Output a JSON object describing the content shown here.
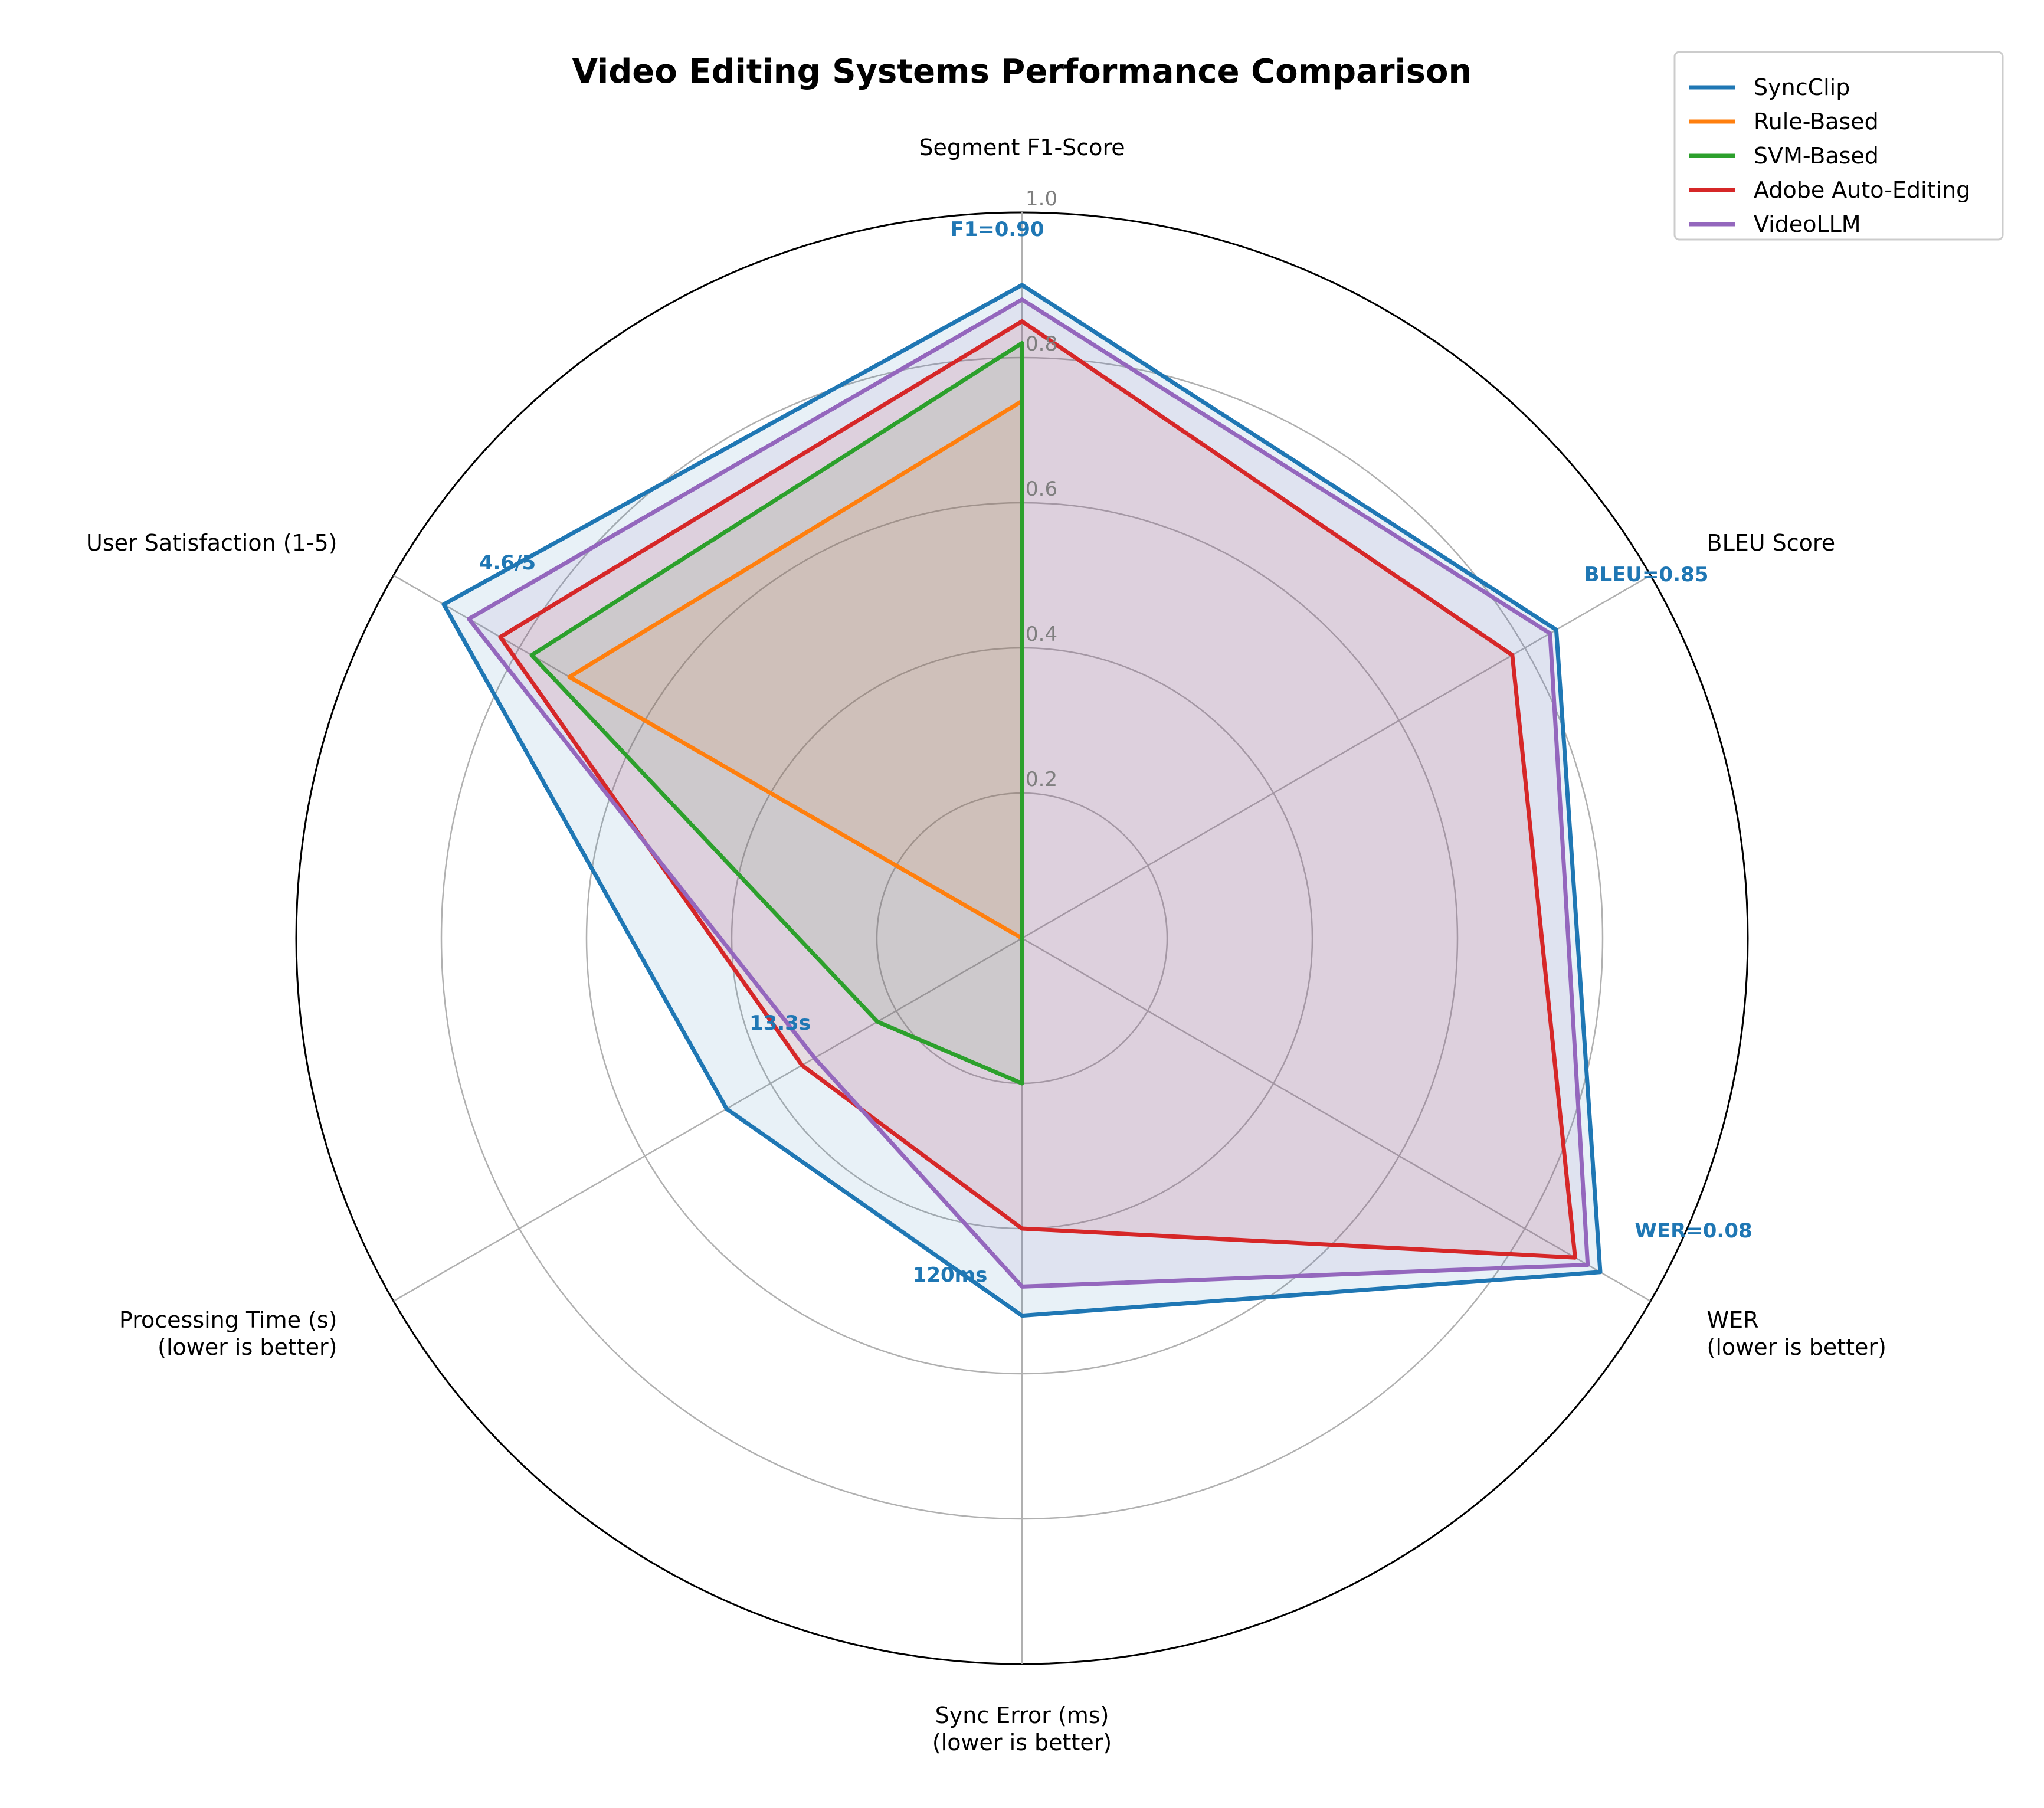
{
  "chart_data": {
    "type": "radar",
    "title": "Video Editing Systems Performance Comparison",
    "axes": [
      {
        "name": "seg_f1",
        "label": [
          "Segment F1-Score"
        ]
      },
      {
        "name": "bleu",
        "label": [
          "BLEU Score"
        ]
      },
      {
        "name": "wer",
        "label": [
          "WER",
          "(lower is better)"
        ]
      },
      {
        "name": "sync_error",
        "label": [
          "Sync Error (ms)",
          "(lower is better)"
        ]
      },
      {
        "name": "processing_time",
        "label": [
          "Processing Time (s)",
          "(lower is better)"
        ]
      },
      {
        "name": "user_satisfaction",
        "label": [
          "User Satisfaction (1-5)"
        ]
      }
    ],
    "rlim": [
      0,
      1.0
    ],
    "rticks": [
      0.2,
      0.4,
      0.6,
      0.8,
      1.0
    ],
    "rtick_labels": [
      "0.2",
      "0.4",
      "0.6",
      "0.8",
      "1.0"
    ],
    "grid": true,
    "legend_position": "top-right",
    "series": [
      {
        "name": "SyncClip",
        "color": "#1f77b4",
        "fill_opacity": 0.1,
        "values": [
          0.9,
          0.85,
          0.92,
          0.52,
          0.47,
          0.92
        ]
      },
      {
        "name": "Rule-Based",
        "color": "#ff7f0e",
        "fill_opacity": 0.1,
        "values": [
          0.74,
          0.0,
          0.0,
          0.0,
          0.0,
          0.72
        ]
      },
      {
        "name": "SVM-Based",
        "color": "#2ca02c",
        "fill_opacity": 0.1,
        "values": [
          0.82,
          0.0,
          0.0,
          0.2,
          0.23,
          0.78
        ]
      },
      {
        "name": "Adobe Auto-Editing",
        "color": "#d62728",
        "fill_opacity": 0.1,
        "values": [
          0.85,
          0.78,
          0.88,
          0.4,
          0.35,
          0.83
        ]
      },
      {
        "name": "VideoLLM",
        "color": "#9467bd",
        "fill_opacity": 0.1,
        "values": [
          0.88,
          0.84,
          0.9,
          0.48,
          0.33,
          0.88
        ]
      }
    ],
    "annotations": [
      {
        "text": "F1=0.90",
        "axis": 0,
        "color": "#1f77b4"
      },
      {
        "text": "BLEU=0.85",
        "axis": 1,
        "color": "#1f77b4"
      },
      {
        "text": "WER=0.08",
        "axis": 2,
        "color": "#1f77b4"
      },
      {
        "text": "120ms",
        "axis": 3,
        "color": "#1f77b4"
      },
      {
        "text": "13.3s",
        "axis": 4,
        "color": "#1f77b4"
      },
      {
        "text": "4.6/5",
        "axis": 5,
        "color": "#1f77b4"
      }
    ]
  }
}
